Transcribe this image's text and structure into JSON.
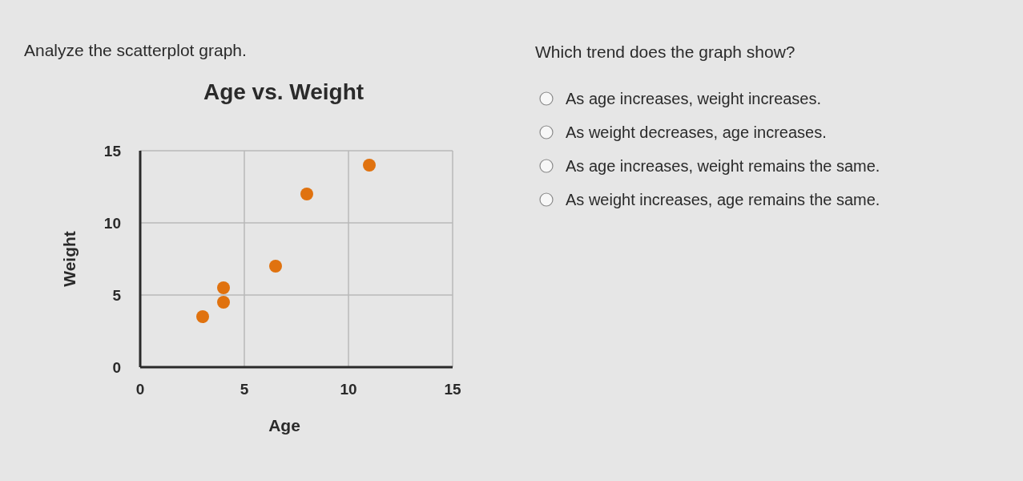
{
  "chart_data": [
    {
      "type": "scatter",
      "title": "Age vs. Weight",
      "xlabel": "Age",
      "ylabel": "Weight",
      "annotations": [
        "Analyze the scatterplot graph."
      ],
      "x": [
        3,
        4,
        4,
        6.5,
        8,
        11
      ],
      "values": [
        3.5,
        4.5,
        5.5,
        7,
        12,
        14
      ],
      "color": "#e0720f",
      "marker": "circle",
      "xlim": [
        0,
        15
      ],
      "ylim": [
        0,
        15
      ],
      "xticks": [
        0,
        5,
        10,
        15
      ],
      "yticks": [
        0,
        5,
        10,
        15
      ],
      "grid": true
    },
    {
      "type": "other",
      "title": "Which trend does the graph show?",
      "annotations": [
        "As age increases, weight increases.",
        "As weight decreases, age increases.",
        "As age increases, weight remains the same.",
        "As weight increases, age remains the same."
      ]
    }
  ]
}
